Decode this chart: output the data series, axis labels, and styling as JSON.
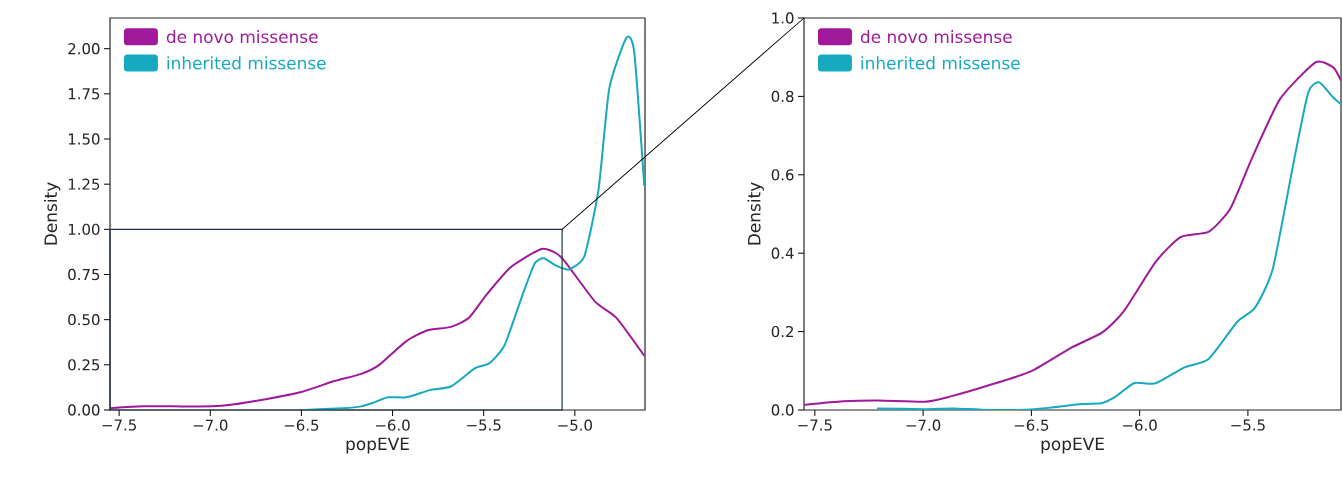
{
  "chart_data": [
    {
      "type": "line",
      "xlabel": "popEVE",
      "ylabel": "Density",
      "legend": "top left",
      "grid": false,
      "marker": "none",
      "line_style": "solid",
      "xlim": [
        -7.55,
        -4.615
      ],
      "ylim": [
        0,
        2.17
      ],
      "xticks": [
        {
          "value": -7.5,
          "label": "−7.5"
        },
        {
          "value": -7.0,
          "label": "−7.0"
        },
        {
          "value": -6.5,
          "label": "−6.5"
        },
        {
          "value": -6.0,
          "label": "−6.0"
        },
        {
          "value": -5.5,
          "label": "−5.5"
        },
        {
          "value": -5.0,
          "label": "−5.0"
        }
      ],
      "yticks": [
        {
          "value": 0,
          "label": "0.00"
        },
        {
          "value": 0.25,
          "label": "0.25"
        },
        {
          "value": 0.5,
          "label": "0.50"
        },
        {
          "value": 0.75,
          "label": "0.75"
        },
        {
          "value": 1.0,
          "label": "1.00"
        },
        {
          "value": 1.25,
          "label": "1.25"
        },
        {
          "value": 1.5,
          "label": "1.50"
        },
        {
          "value": 1.75,
          "label": "1.75"
        },
        {
          "value": 2.0,
          "label": "2.00"
        }
      ],
      "series": [
        {
          "name": "de novo missense",
          "color": "#a0199b",
          "x": [
            -7.549,
            -7.369,
            -7.205,
            -6.992,
            -6.877,
            -6.696,
            -6.5,
            -6.319,
            -6.172,
            -6.073,
            -5.926,
            -5.811,
            -5.68,
            -5.581,
            -5.483,
            -5.352,
            -5.188,
            -5.106,
            -5.053,
            -4.889,
            -4.772,
            -4.619
          ],
          "values": [
            0.01,
            0.02,
            0.02,
            0.02,
            0.03,
            0.06,
            0.1,
            0.16,
            0.2,
            0.25,
            0.38,
            0.44,
            0.46,
            0.51,
            0.64,
            0.79,
            0.89,
            0.87,
            0.82,
            0.6,
            0.51,
            0.3
          ]
        },
        {
          "name": "inherited missense",
          "color": "#17a9bf",
          "x": [
            -6.483,
            -6.27,
            -6.172,
            -6.106,
            -6.024,
            -5.926,
            -5.795,
            -5.68,
            -5.549,
            -5.467,
            -5.385,
            -5.286,
            -5.221,
            -5.171,
            -5.106,
            -5.053,
            -5.026,
            -4.948,
            -4.87,
            -4.811,
            -4.717,
            -4.674,
            -4.619
          ],
          "values": [
            0,
            0.01,
            0.02,
            0.04,
            0.07,
            0.07,
            0.11,
            0.13,
            0.23,
            0.26,
            0.36,
            0.64,
            0.81,
            0.84,
            0.8,
            0.78,
            0.78,
            0.85,
            1.22,
            1.78,
            2.06,
            1.98,
            1.24
          ]
        }
      ]
    },
    {
      "type": "line",
      "xlabel": "popEVE",
      "ylabel": "Density",
      "legend": "top left",
      "grid": false,
      "marker": "none",
      "line_style": "solid",
      "xlim": [
        -7.55,
        -5.07
      ],
      "ylim": [
        0,
        1.0
      ],
      "xticks": [
        {
          "value": -7.5,
          "label": "−7.5"
        },
        {
          "value": -7.0,
          "label": "−7.0"
        },
        {
          "value": -6.5,
          "label": "−6.5"
        },
        {
          "value": -6.0,
          "label": "−6.0"
        },
        {
          "value": -5.5,
          "label": "−5.5"
        }
      ],
      "yticks": [
        {
          "value": 0,
          "label": "0.0"
        },
        {
          "value": 0.2,
          "label": "0.2"
        },
        {
          "value": 0.4,
          "label": "0.4"
        },
        {
          "value": 0.6,
          "label": "0.6"
        },
        {
          "value": 0.8,
          "label": "0.8"
        },
        {
          "value": 1.0,
          "label": "1.0"
        }
      ],
      "series": [
        {
          "name": "de novo missense",
          "color": "#a0199b",
          "x": [
            -7.549,
            -7.369,
            -7.205,
            -6.992,
            -6.877,
            -6.696,
            -6.5,
            -6.319,
            -6.172,
            -6.073,
            -5.926,
            -5.811,
            -5.68,
            -5.581,
            -5.483,
            -5.352,
            -5.188,
            -5.106,
            -5.07
          ],
          "values": [
            0.013,
            0.022,
            0.024,
            0.021,
            0.034,
            0.063,
            0.099,
            0.158,
            0.198,
            0.252,
            0.378,
            0.441,
            0.455,
            0.514,
            0.64,
            0.793,
            0.887,
            0.874,
            0.84
          ]
        },
        {
          "name": "inherited missense",
          "color": "#17a9bf",
          "x": [
            -7.213,
            -6.992,
            -6.86,
            -6.696,
            -6.483,
            -6.27,
            -6.172,
            -6.106,
            -6.024,
            -5.926,
            -5.795,
            -5.68,
            -5.549,
            -5.467,
            -5.385,
            -5.286,
            -5.221,
            -5.171,
            -5.106,
            -5.07
          ],
          "values": [
            0.004,
            0.002,
            0.004,
            0,
            0.002,
            0.015,
            0.018,
            0.036,
            0.069,
            0.068,
            0.108,
            0.131,
            0.225,
            0.261,
            0.36,
            0.64,
            0.811,
            0.836,
            0.797,
            0.78
          ]
        }
      ]
    }
  ]
}
